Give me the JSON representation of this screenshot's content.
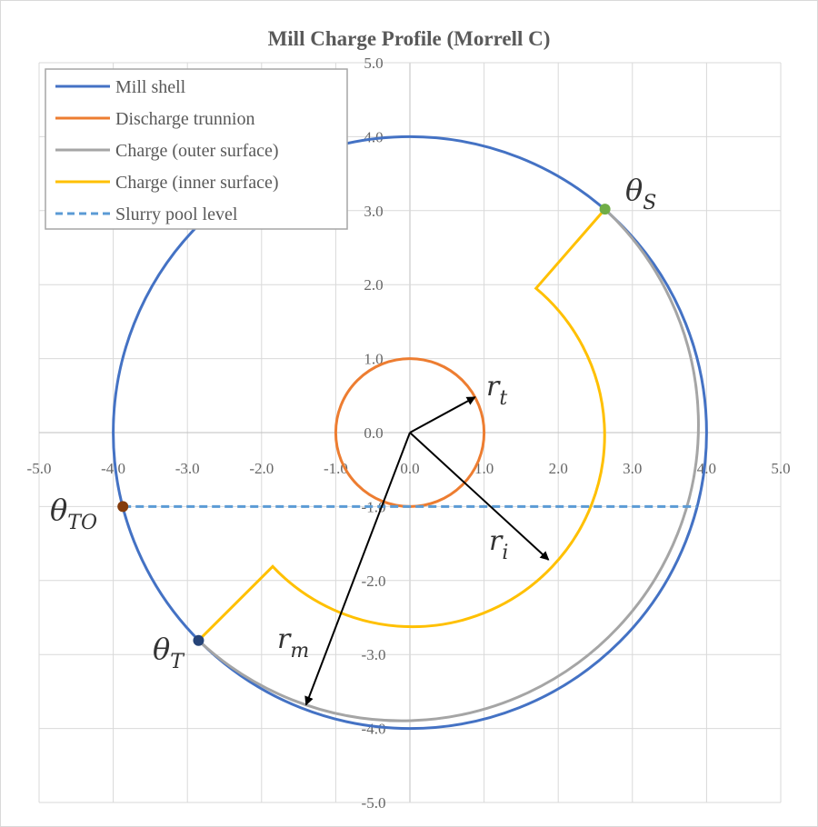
{
  "chart_data": {
    "type": "line",
    "title": "Mill Charge Profile (Morrell C)",
    "xlim": [
      -5,
      5
    ],
    "ylim": [
      -5,
      5
    ],
    "x_ticks": [
      "-5.0",
      "-4.0",
      "-3.0",
      "-2.0",
      "-1.0",
      "0.0",
      "1.0",
      "2.0",
      "3.0",
      "4.0",
      "5.0"
    ],
    "y_ticks": [
      "5.0",
      "4.0",
      "3.0",
      "2.0",
      "1.0",
      "0.0",
      "-1.0",
      "-2.0",
      "-3.0",
      "-4.0",
      "-5.0"
    ],
    "grid": true,
    "legend_position": "top-left",
    "series": [
      {
        "name": "Mill shell",
        "color": "#4472c4",
        "shape": "circle",
        "radius": 4.0
      },
      {
        "name": "Discharge trunnion",
        "color": "#ed7d31",
        "shape": "circle",
        "radius": 1.0
      },
      {
        "name": "Charge (outer surface)",
        "color": "#a5a5a5",
        "shape": "arc",
        "radius": 4.0,
        "from": [
          2.63,
          3.02
        ],
        "to": [
          -2.85,
          -2.81
        ]
      },
      {
        "name": "Charge (inner surface)",
        "color": "#ffc000",
        "shape": "path",
        "points_start": [
          [
            2.63,
            3.02
          ],
          [
            1.7,
            1.95
          ]
        ],
        "arc_radius": 2.59,
        "points_end": [
          [
            -1.85,
            -1.81
          ],
          [
            -2.85,
            -2.81
          ]
        ]
      },
      {
        "name": "Slurry pool level",
        "color": "#5b9bd5",
        "dashed": true,
        "x": [
          -3.87,
          3.87
        ],
        "y": [
          -1.0,
          -1.0
        ]
      }
    ],
    "points": [
      {
        "label": "θ",
        "sub": "S",
        "x": 2.63,
        "y": 3.02,
        "color": "#70ad47"
      },
      {
        "label": "θ",
        "sub": "TO",
        "x": -3.87,
        "y": -1.0,
        "color": "#843c0c"
      },
      {
        "label": "θ",
        "sub": "T",
        "x": -2.85,
        "y": -2.81,
        "color": "#264478"
      }
    ],
    "arrows": [
      {
        "label": "r",
        "sub": "t",
        "x": 0.88,
        "y": 0.48
      },
      {
        "label": "r",
        "sub": "i",
        "x": 1.87,
        "y": -1.72
      },
      {
        "label": "r",
        "sub": "m",
        "x": -1.4,
        "y": -3.68
      }
    ]
  }
}
